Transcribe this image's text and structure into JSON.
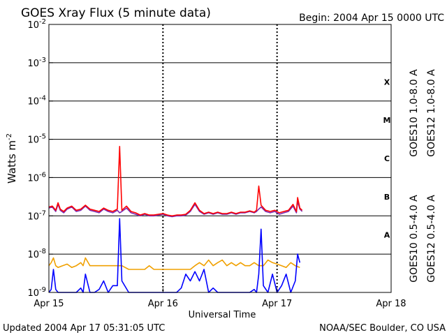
{
  "header": {
    "title": "GOES Xray Flux (5 minute data)",
    "begin": "Begin:  2004 Apr 15 0000 UTC"
  },
  "footer": {
    "updated": "Updated 2004 Apr 17 05:31:05 UTC",
    "credit": "NOAA/SEC Boulder, CO USA"
  },
  "chart_data": {
    "type": "line",
    "title": "GOES Xray Flux (5 minute data)",
    "xlabel": "Universal Time",
    "ylabel": "Watts m^-2",
    "yscale": "log",
    "ylim": [
      1e-09,
      0.01
    ],
    "x_unit": "days since 2004 Apr 15 0000 UTC",
    "xlim": [
      0,
      3
    ],
    "x_ticks": [
      {
        "value": 0,
        "label": "Apr 15"
      },
      {
        "value": 1,
        "label": "Apr 16"
      },
      {
        "value": 2,
        "label": "Apr 17"
      },
      {
        "value": 3,
        "label": "Apr 18"
      }
    ],
    "y_ticks": [
      {
        "exp": -9,
        "label": "10",
        "sup": "-9"
      },
      {
        "exp": -8,
        "label": "10",
        "sup": "-8"
      },
      {
        "exp": -7,
        "label": "10",
        "sup": "-7"
      },
      {
        "exp": -6,
        "label": "10",
        "sup": "-6"
      },
      {
        "exp": -5,
        "label": "10",
        "sup": "-5"
      },
      {
        "exp": -4,
        "label": "10",
        "sup": "-4"
      },
      {
        "exp": -3,
        "label": "10",
        "sup": "-3"
      },
      {
        "exp": -2,
        "label": "10",
        "sup": "-2"
      }
    ],
    "flare_classes": [
      {
        "label": "A",
        "center_exp": -7.5
      },
      {
        "label": "B",
        "center_exp": -6.5
      },
      {
        "label": "C",
        "center_exp": -5.5
      },
      {
        "label": "M",
        "center_exp": -4.5
      },
      {
        "label": "X",
        "center_exp": -3.5
      }
    ],
    "grid": "horizontal decade lines, dotted vertical day lines",
    "series": [
      {
        "name": "GOES10 1.0-8.0 A",
        "color": "#7d2ab0",
        "x": [
          0,
          0.03,
          0.06,
          0.08,
          0.1,
          0.13,
          0.16,
          0.2,
          0.24,
          0.28,
          0.32,
          0.36,
          0.4,
          0.44,
          0.48,
          0.52,
          0.56,
          0.6,
          0.62,
          0.64,
          0.68,
          0.72,
          0.76,
          0.8,
          0.84,
          0.88,
          0.92,
          0.96,
          1.0,
          1.04,
          1.08,
          1.12,
          1.16,
          1.2,
          1.24,
          1.28,
          1.32,
          1.36,
          1.4,
          1.44,
          1.48,
          1.52,
          1.56,
          1.6,
          1.64,
          1.68,
          1.72,
          1.76,
          1.8,
          1.82,
          1.84,
          1.86,
          1.9,
          1.94,
          1.98,
          2.02,
          2.06,
          2.1,
          2.14,
          2.17,
          2.18,
          2.2,
          2.22
        ],
        "y": [
          1.6e-07,
          1.7e-07,
          1.3e-07,
          2e-07,
          1.4e-07,
          1.2e-07,
          1.5e-07,
          1.7e-07,
          1.3e-07,
          1.4e-07,
          1.8e-07,
          1.4e-07,
          1.3e-07,
          1.2e-07,
          1.5e-07,
          1.3e-07,
          1.2e-07,
          1.4e-07,
          1.2e-07,
          1.3e-07,
          1.6e-07,
          1.2e-07,
          1.1e-07,
          1e-07,
          1.1e-07,
          1e-07,
          1e-07,
          1.05e-07,
          1.1e-07,
          1e-07,
          9.5e-08,
          1e-07,
          1e-07,
          1.05e-07,
          1.3e-07,
          2e-07,
          1.3e-07,
          1.1e-07,
          1.2e-07,
          1.1e-07,
          1.2e-07,
          1.1e-07,
          1.1e-07,
          1.2e-07,
          1.1e-07,
          1.2e-07,
          1.2e-07,
          1.3e-07,
          1.2e-07,
          1.3e-07,
          1.5e-07,
          1.7e-07,
          1.3e-07,
          1.2e-07,
          1.3e-07,
          1.1e-07,
          1.2e-07,
          1.3e-07,
          1.8e-07,
          1.2e-07,
          2.4e-07,
          1.5e-07,
          1.3e-07
        ]
      },
      {
        "name": "GOES12 1.0-8.0 A",
        "color": "#ff0000",
        "x": [
          0,
          0.03,
          0.06,
          0.08,
          0.1,
          0.13,
          0.16,
          0.2,
          0.24,
          0.28,
          0.32,
          0.36,
          0.4,
          0.44,
          0.48,
          0.52,
          0.56,
          0.6,
          0.62,
          0.64,
          0.68,
          0.72,
          0.76,
          0.8,
          0.84,
          0.88,
          0.92,
          0.96,
          1.0,
          1.04,
          1.08,
          1.12,
          1.16,
          1.2,
          1.24,
          1.28,
          1.32,
          1.36,
          1.4,
          1.44,
          1.48,
          1.52,
          1.56,
          1.6,
          1.64,
          1.68,
          1.72,
          1.76,
          1.8,
          1.82,
          1.84,
          1.86,
          1.9,
          1.94,
          1.98,
          2.02,
          2.06,
          2.1,
          2.14,
          2.17,
          2.18,
          2.2,
          2.22
        ],
        "y": [
          1.7e-07,
          1.8e-07,
          1.4e-07,
          2.2e-07,
          1.5e-07,
          1.3e-07,
          1.6e-07,
          1.8e-07,
          1.4e-07,
          1.5e-07,
          1.9e-07,
          1.5e-07,
          1.4e-07,
          1.3e-07,
          1.6e-07,
          1.4e-07,
          1.3e-07,
          1.5e-07,
          6.5e-06,
          1.4e-07,
          1.8e-07,
          1.3e-07,
          1.2e-07,
          1.05e-07,
          1.15e-07,
          1.05e-07,
          1.05e-07,
          1.1e-07,
          1.15e-07,
          1.05e-07,
          1e-07,
          1.05e-07,
          1.05e-07,
          1.1e-07,
          1.4e-07,
          2.2e-07,
          1.4e-07,
          1.15e-07,
          1.25e-07,
          1.15e-07,
          1.25e-07,
          1.15e-07,
          1.15e-07,
          1.25e-07,
          1.15e-07,
          1.25e-07,
          1.25e-07,
          1.35e-07,
          1.25e-07,
          1.4e-07,
          6e-07,
          1.9e-07,
          1.4e-07,
          1.3e-07,
          1.4e-07,
          1.2e-07,
          1.3e-07,
          1.4e-07,
          2e-07,
          1.3e-07,
          3e-07,
          1.6e-07,
          1.4e-07
        ]
      },
      {
        "name": "GOES10 0.5-4.0 A",
        "color": "#f0a000",
        "x": [
          0,
          0.02,
          0.04,
          0.06,
          0.08,
          0.12,
          0.16,
          0.2,
          0.24,
          0.28,
          0.3,
          0.32,
          0.36,
          0.4,
          0.44,
          0.48,
          0.52,
          0.56,
          0.6,
          0.64,
          0.7,
          0.75,
          0.8,
          0.84,
          0.88,
          0.92,
          0.96,
          1.0,
          1.04,
          1.08,
          1.12,
          1.16,
          1.2,
          1.24,
          1.28,
          1.32,
          1.36,
          1.4,
          1.44,
          1.48,
          1.52,
          1.56,
          1.6,
          1.64,
          1.68,
          1.72,
          1.76,
          1.8,
          1.84,
          1.88,
          1.92,
          1.96,
          2.0,
          2.04,
          2.08,
          2.12,
          2.16,
          2.2
        ],
        "y": [
          5e-09,
          6e-09,
          8e-09,
          5e-09,
          4.5e-09,
          5e-09,
          5.5e-09,
          4.5e-09,
          5e-09,
          6e-09,
          5e-09,
          8e-09,
          5e-09,
          5e-09,
          5e-09,
          5e-09,
          5e-09,
          5e-09,
          5e-09,
          5e-09,
          4e-09,
          4e-09,
          4e-09,
          4e-09,
          5e-09,
          4e-09,
          4e-09,
          4e-09,
          4e-09,
          4e-09,
          4e-09,
          4e-09,
          4e-09,
          4e-09,
          5e-09,
          6e-09,
          5e-09,
          7e-09,
          5e-09,
          6e-09,
          7e-09,
          5e-09,
          6e-09,
          5e-09,
          6e-09,
          5e-09,
          5e-09,
          6e-09,
          5e-09,
          5e-09,
          7e-09,
          6e-09,
          5.5e-09,
          5e-09,
          4.5e-09,
          6e-09,
          5e-09,
          4.5e-09
        ]
      },
      {
        "name": "GOES12 0.5-4.0 A",
        "color": "#0000ff",
        "x": [
          0,
          0.02,
          0.04,
          0.06,
          0.08,
          0.12,
          0.16,
          0.2,
          0.24,
          0.28,
          0.3,
          0.32,
          0.36,
          0.4,
          0.44,
          0.48,
          0.52,
          0.56,
          0.6,
          0.62,
          0.64,
          0.7,
          0.75,
          0.8,
          0.84,
          0.88,
          0.92,
          0.96,
          1.0,
          1.04,
          1.08,
          1.12,
          1.16,
          1.2,
          1.24,
          1.28,
          1.32,
          1.36,
          1.4,
          1.44,
          1.48,
          1.52,
          1.56,
          1.6,
          1.64,
          1.68,
          1.72,
          1.76,
          1.8,
          1.82,
          1.84,
          1.86,
          1.88,
          1.92,
          1.96,
          2.0,
          2.04,
          2.08,
          2.12,
          2.16,
          2.18,
          2.2
        ],
        "y": [
          1e-09,
          1.2e-09,
          4e-09,
          1.2e-09,
          1e-09,
          1e-09,
          1e-09,
          1e-09,
          1e-09,
          1.3e-09,
          1e-09,
          3e-09,
          1e-09,
          1e-09,
          1.2e-09,
          2e-09,
          1e-09,
          1.5e-09,
          1.5e-09,
          8.5e-08,
          2e-09,
          1e-09,
          1e-09,
          1e-09,
          1e-09,
          1e-09,
          1e-09,
          1e-09,
          1e-09,
          1e-09,
          1e-09,
          1e-09,
          1.3e-09,
          3e-09,
          2e-09,
          3.5e-09,
          2e-09,
          4e-09,
          1e-09,
          1.3e-09,
          1e-09,
          1e-09,
          1e-09,
          1e-09,
          1e-09,
          1e-09,
          1e-09,
          1e-09,
          1.2e-09,
          1e-09,
          3e-09,
          4.5e-08,
          1.5e-09,
          1e-09,
          3e-09,
          1e-09,
          1.5e-09,
          3e-09,
          1e-09,
          2e-09,
          1e-08,
          6e-09
        ]
      }
    ]
  }
}
